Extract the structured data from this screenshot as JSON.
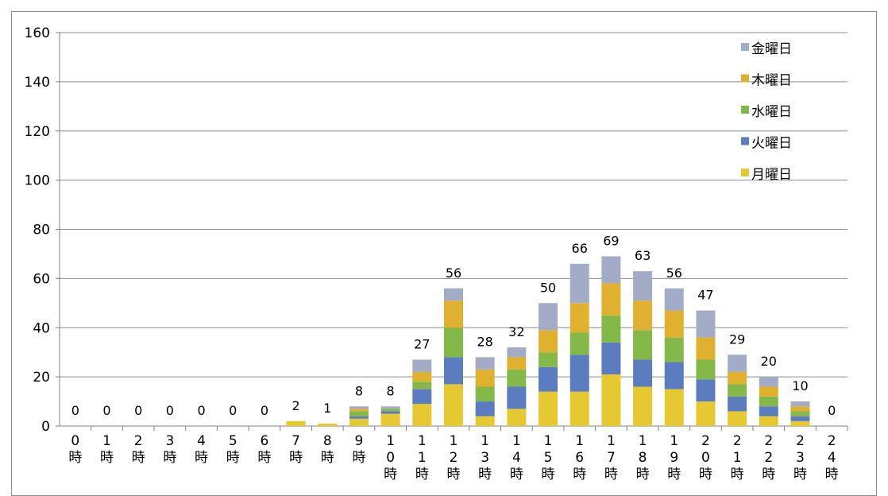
{
  "chart_data": {
    "type": "bar",
    "stacked": true,
    "categories": [
      [
        "0",
        "時"
      ],
      [
        "1",
        "時"
      ],
      [
        "2",
        "時"
      ],
      [
        "3",
        "時"
      ],
      [
        "4",
        "時"
      ],
      [
        "5",
        "時"
      ],
      [
        "6",
        "時"
      ],
      [
        "7",
        "時"
      ],
      [
        "8",
        "時"
      ],
      [
        "9",
        "時"
      ],
      [
        "1",
        "0",
        "時"
      ],
      [
        "1",
        "1",
        "時"
      ],
      [
        "1",
        "2",
        "時"
      ],
      [
        "1",
        "3",
        "時"
      ],
      [
        "1",
        "4",
        "時"
      ],
      [
        "1",
        "5",
        "時"
      ],
      [
        "1",
        "6",
        "時"
      ],
      [
        "1",
        "7",
        "時"
      ],
      [
        "1",
        "8",
        "時"
      ],
      [
        "1",
        "9",
        "時"
      ],
      [
        "2",
        "0",
        "時"
      ],
      [
        "2",
        "1",
        "時"
      ],
      [
        "2",
        "2",
        "時"
      ],
      [
        "2",
        "3",
        "時"
      ],
      [
        "2",
        "4",
        "時"
      ]
    ],
    "series": [
      {
        "name": "月曜日",
        "color": "#E6C832",
        "values": [
          0,
          0,
          0,
          0,
          0,
          0,
          0,
          2,
          1,
          3,
          5,
          9,
          17,
          4,
          7,
          14,
          14,
          21,
          16,
          15,
          10,
          6,
          4,
          2,
          0
        ]
      },
      {
        "name": "火曜日",
        "color": "#5B7DC0",
        "values": [
          0,
          0,
          0,
          0,
          0,
          0,
          0,
          0,
          0,
          1,
          1,
          6,
          11,
          6,
          9,
          10,
          15,
          13,
          11,
          11,
          9,
          6,
          4,
          2,
          0
        ]
      },
      {
        "name": "水曜日",
        "color": "#84B848",
        "values": [
          0,
          0,
          0,
          0,
          0,
          0,
          0,
          0,
          0,
          2,
          1,
          3,
          12,
          6,
          7,
          6,
          9,
          11,
          12,
          10,
          8,
          5,
          4,
          2,
          0
        ]
      },
      {
        "name": "木曜日",
        "color": "#E0B030",
        "values": [
          0,
          0,
          0,
          0,
          0,
          0,
          0,
          0,
          0,
          1,
          0,
          4,
          11,
          7,
          5,
          9,
          12,
          13,
          12,
          11,
          9,
          5,
          4,
          2,
          0
        ]
      },
      {
        "name": "金曜日",
        "color": "#A3ACC6",
        "values": [
          0,
          0,
          0,
          0,
          0,
          0,
          0,
          0,
          0,
          1,
          1,
          5,
          5,
          5,
          4,
          11,
          16,
          11,
          12,
          9,
          11,
          7,
          4,
          2,
          0
        ]
      }
    ],
    "totals": [
      0,
      0,
      0,
      0,
      0,
      0,
      0,
      2,
      1,
      8,
      8,
      27,
      56,
      28,
      32,
      50,
      66,
      69,
      63,
      56,
      47,
      29,
      20,
      10,
      0
    ],
    "ylim": [
      0,
      160
    ],
    "yticks": [
      0,
      20,
      40,
      60,
      80,
      100,
      120,
      140,
      160
    ],
    "grid": true,
    "legend": "top-right",
    "legend_order": [
      "金曜日",
      "木曜日",
      "水曜日",
      "火曜日",
      "月曜日"
    ]
  }
}
